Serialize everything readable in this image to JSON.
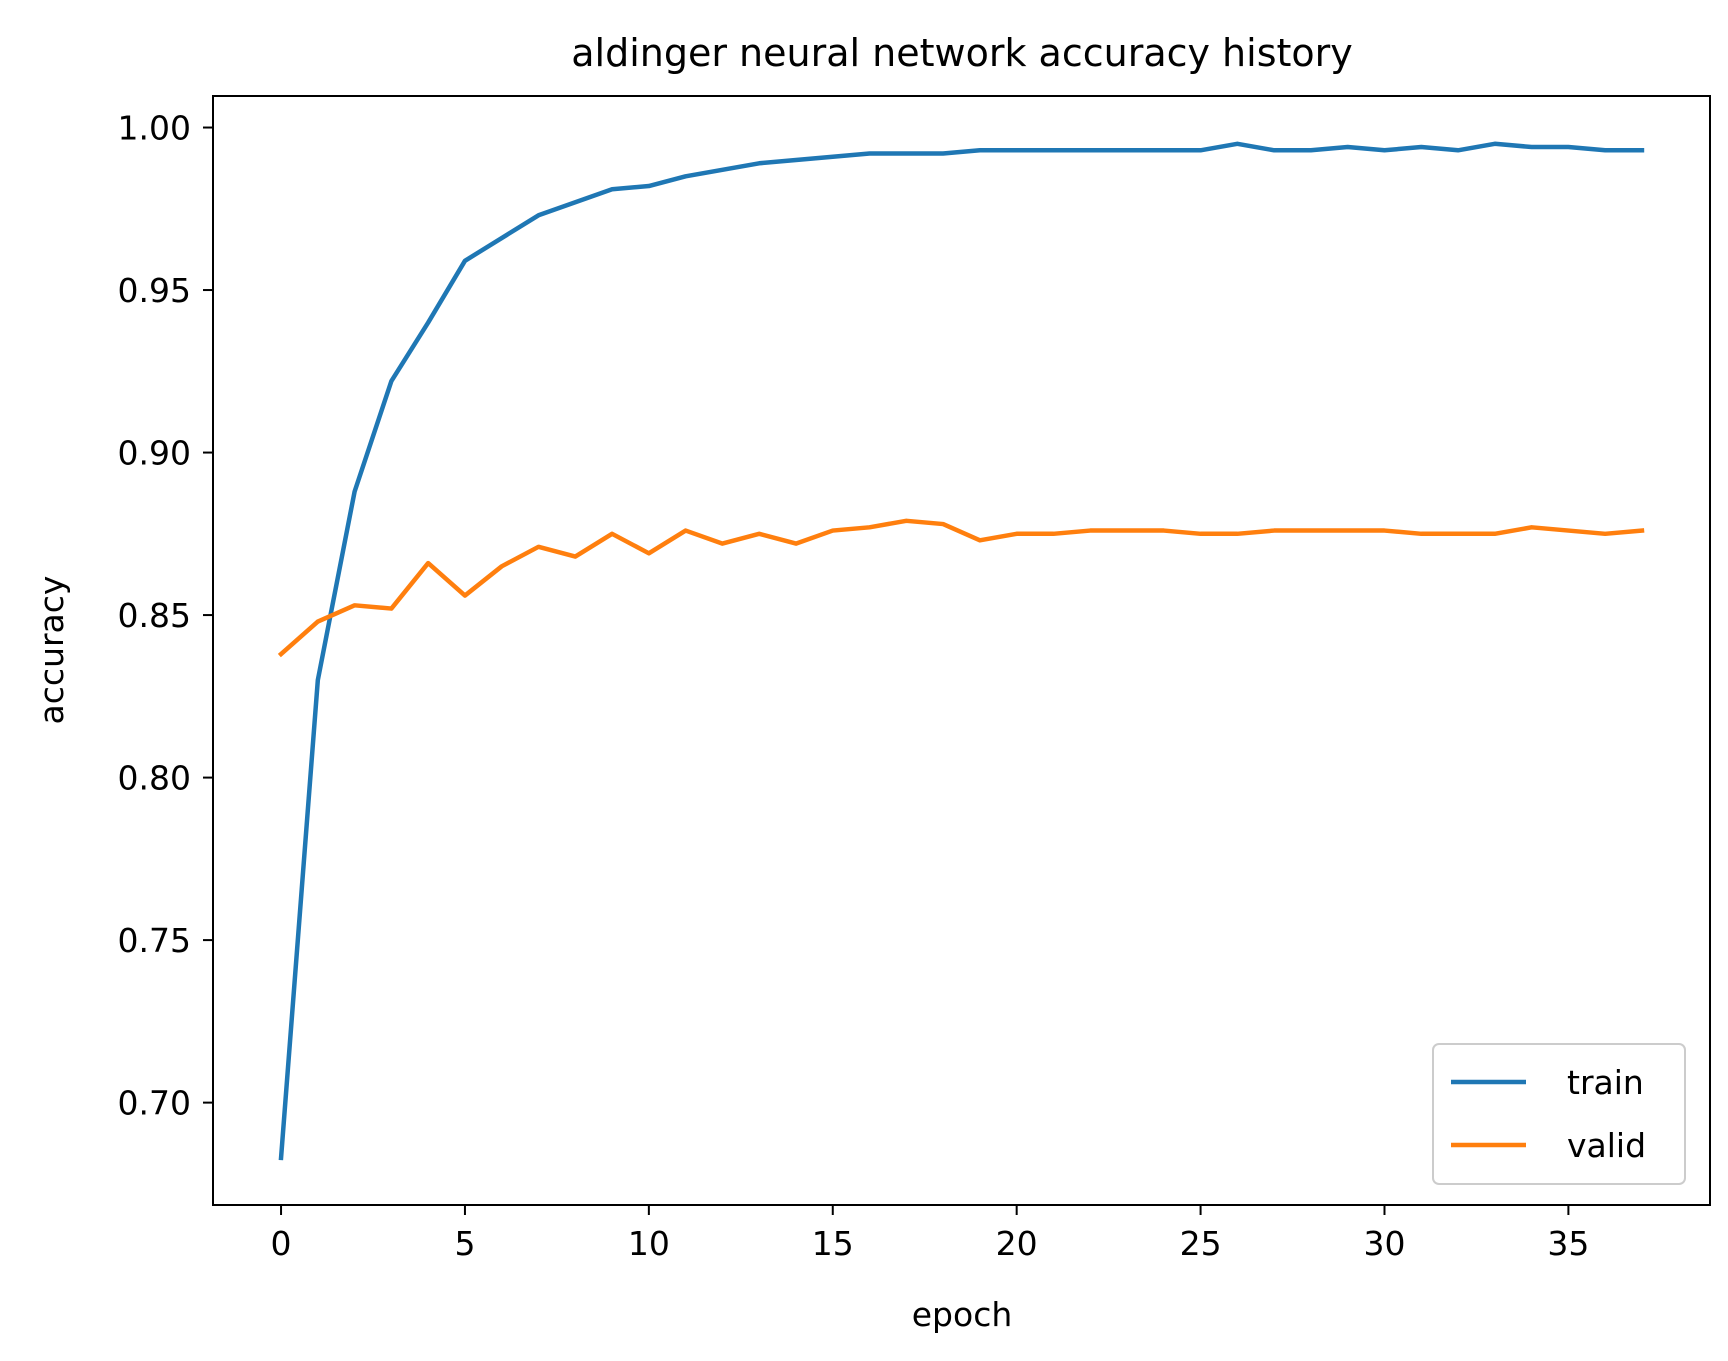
{
  "chart_data": {
    "type": "line",
    "title": "aldinger neural network accuracy history",
    "xlabel": "epoch",
    "ylabel": "accuracy",
    "xlim": [
      -1.85,
      38.85
    ],
    "ylim": [
      0.6685,
      1.0097
    ],
    "x_ticks": [
      0,
      5,
      10,
      15,
      20,
      25,
      30,
      35
    ],
    "y_ticks": [
      0.7,
      0.75,
      0.8,
      0.85,
      0.9,
      0.95,
      1.0
    ],
    "x_tick_labels": [
      "0",
      "5",
      "10",
      "15",
      "20",
      "25",
      "30",
      "35"
    ],
    "y_tick_labels": [
      "0.70",
      "0.75",
      "0.80",
      "0.85",
      "0.90",
      "0.95",
      "1.00"
    ],
    "grid": false,
    "legend_position": "lower-right",
    "x": [
      0,
      1,
      2,
      3,
      4,
      5,
      6,
      7,
      8,
      9,
      10,
      11,
      12,
      13,
      14,
      15,
      16,
      17,
      18,
      19,
      20,
      21,
      22,
      23,
      24,
      25,
      26,
      27,
      28,
      29,
      30,
      31,
      32,
      33,
      34,
      35,
      36,
      37
    ],
    "series": [
      {
        "name": "train",
        "color": "#1f77b4",
        "values": [
          0.683,
          0.83,
          0.888,
          0.922,
          0.94,
          0.959,
          0.966,
          0.973,
          0.977,
          0.981,
          0.982,
          0.985,
          0.987,
          0.989,
          0.99,
          0.991,
          0.992,
          0.992,
          0.992,
          0.993,
          0.993,
          0.993,
          0.993,
          0.993,
          0.993,
          0.993,
          0.995,
          0.993,
          0.993,
          0.994,
          0.993,
          0.994,
          0.993,
          0.995,
          0.994,
          0.994,
          0.993,
          0.993
        ]
      },
      {
        "name": "valid",
        "color": "#ff7f0e",
        "values": [
          0.838,
          0.848,
          0.853,
          0.852,
          0.866,
          0.856,
          0.865,
          0.871,
          0.868,
          0.875,
          0.869,
          0.876,
          0.872,
          0.875,
          0.872,
          0.876,
          0.877,
          0.879,
          0.878,
          0.873,
          0.875,
          0.875,
          0.876,
          0.876,
          0.876,
          0.875,
          0.875,
          0.876,
          0.876,
          0.876,
          0.876,
          0.875,
          0.875,
          0.875,
          0.877,
          0.876,
          0.875,
          0.876
        ]
      }
    ]
  }
}
